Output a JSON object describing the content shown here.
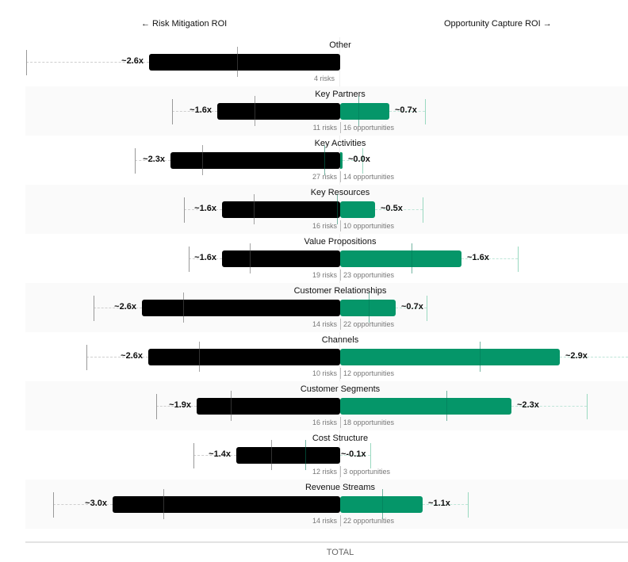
{
  "header": {
    "left_label": "← Risk Mitigation ROI",
    "right_label": "Opportunity Capture ROI →"
  },
  "footer": {
    "total_label": "TOTAL"
  },
  "colors": {
    "risk": "#000000",
    "opportunity": "#059669",
    "band": "#fafafa"
  },
  "rows": [
    {
      "label": "Other",
      "risk_roi": "~2.6x",
      "opp_roi": "",
      "meta_risk": "4 risks",
      "meta_opp": ""
    },
    {
      "label": "Key Partners",
      "risk_roi": "~1.6x",
      "opp_roi": "~0.7x",
      "meta_risk": "11 risks",
      "meta_opp": "16 opportunities"
    },
    {
      "label": "Key Activities",
      "risk_roi": "~2.3x",
      "opp_roi": "~0.0x",
      "meta_risk": "27 risks",
      "meta_opp": "14 opportunities"
    },
    {
      "label": "Key Resources",
      "risk_roi": "~1.6x",
      "opp_roi": "~0.5x",
      "meta_risk": "16 risks",
      "meta_opp": "10 opportunities"
    },
    {
      "label": "Value Propositions",
      "risk_roi": "~1.6x",
      "opp_roi": "~1.6x",
      "meta_risk": "19 risks",
      "meta_opp": "23 opportunities"
    },
    {
      "label": "Customer Relationships",
      "risk_roi": "~2.6x",
      "opp_roi": "~0.7x",
      "meta_risk": "14 risks",
      "meta_opp": "22 opportunities"
    },
    {
      "label": "Channels",
      "risk_roi": "~2.6x",
      "opp_roi": "~2.9x",
      "meta_risk": "10 risks",
      "meta_opp": "12 opportunities"
    },
    {
      "label": "Customer Segments",
      "risk_roi": "~1.9x",
      "opp_roi": "~2.3x",
      "meta_risk": "16 risks",
      "meta_opp": "18 opportunities"
    },
    {
      "label": "Cost Structure",
      "risk_roi": "~1.4x",
      "opp_roi": "~-0.1x",
      "meta_risk": "12 risks",
      "meta_opp": "3 opportunities"
    },
    {
      "label": "Revenue Streams",
      "risk_roi": "~3.0x",
      "opp_roi": "~1.1x",
      "meta_risk": "14 risks",
      "meta_opp": "22 opportunities"
    }
  ],
  "chart_data": {
    "type": "bar",
    "orientation": "horizontal-diverging",
    "title": "",
    "left_axis_label": "← Risk Mitigation ROI",
    "right_axis_label": "Opportunity Capture ROI →",
    "categories": [
      "Other",
      "Key Partners",
      "Key Activities",
      "Key Resources",
      "Value Propositions",
      "Customer Relationships",
      "Channels",
      "Customer Segments",
      "Cost Structure",
      "Revenue Streams"
    ],
    "series": [
      {
        "name": "Risk Mitigation ROI",
        "color": "#000000",
        "values": [
          2.6,
          1.6,
          2.3,
          1.6,
          1.6,
          2.6,
          2.6,
          1.9,
          1.4,
          3.0
        ]
      },
      {
        "name": "Opportunity Capture ROI",
        "color": "#059669",
        "values": [
          null,
          0.7,
          0.0,
          0.5,
          1.6,
          0.7,
          2.9,
          2.3,
          -0.1,
          1.1
        ]
      }
    ],
    "risk_counts": [
      4,
      11,
      27,
      16,
      19,
      14,
      10,
      16,
      12,
      14
    ],
    "opportunity_counts": [
      null,
      16,
      14,
      10,
      23,
      22,
      12,
      18,
      3,
      22
    ],
    "footer": "TOTAL",
    "grid": false,
    "legend": "none"
  }
}
